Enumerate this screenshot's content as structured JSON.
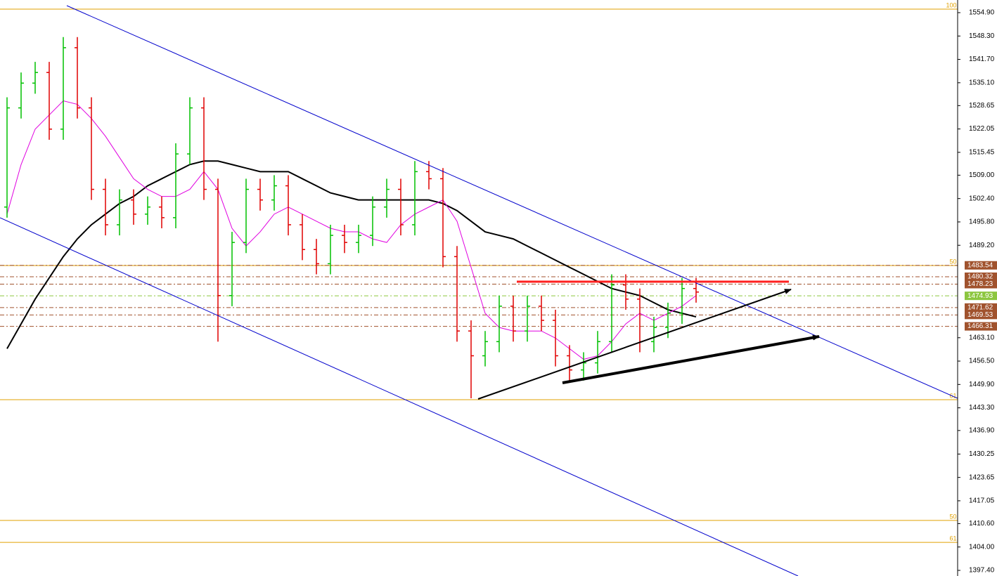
{
  "chart_data": {
    "type": "ohlc",
    "up_color": "#00c000",
    "down_color": "#e00000",
    "open": [
      1500,
      1528,
      1535,
      1538,
      1522,
      1545,
      1528,
      1505,
      1495,
      1502,
      1498,
      1500,
      1497,
      1515,
      1528,
      1505,
      1475,
      1490,
      1505,
      1502,
      1506,
      1495,
      1488,
      1484,
      1492,
      1490,
      1492,
      1500,
      1505,
      1495,
      1510,
      1508,
      1486,
      1465,
      1458,
      1462,
      1472,
      1465,
      1472,
      1468,
      1458,
      1454,
      1456,
      1462,
      1478,
      1474,
      1462,
      1466,
      1470,
      1477
    ],
    "high": [
      1531,
      1538,
      1541,
      1541,
      1548,
      1548,
      1531,
      1508,
      1505,
      1505,
      1503,
      1503,
      1518,
      1531,
      1531,
      1508,
      1493,
      1508,
      1508,
      1509,
      1509,
      1498,
      1491,
      1495,
      1495,
      1495,
      1503,
      1508,
      1508,
      1513,
      1513,
      1511,
      1489,
      1468,
      1465,
      1475,
      1475,
      1475,
      1475,
      1471,
      1461,
      1459,
      1465,
      1481,
      1481,
      1477,
      1469,
      1473,
      1480,
      1480
    ],
    "low": [
      1497,
      1525,
      1532,
      1519,
      1519,
      1525,
      1502,
      1492,
      1492,
      1495,
      1495,
      1494,
      1494,
      1512,
      1502,
      1462,
      1472,
      1487,
      1499,
      1499,
      1492,
      1485,
      1481,
      1481,
      1487,
      1487,
      1489,
      1497,
      1492,
      1492,
      1505,
      1483,
      1462,
      1446,
      1455,
      1459,
      1462,
      1462,
      1465,
      1455,
      1451,
      1451,
      1453,
      1459,
      1471,
      1459,
      1459,
      1463,
      1467,
      1473
    ],
    "close": [
      1528,
      1535,
      1538,
      1522,
      1545,
      1528,
      1505,
      1495,
      1502,
      1498,
      1500,
      1497,
      1515,
      1528,
      1505,
      1475,
      1490,
      1505,
      1502,
      1506,
      1495,
      1488,
      1484,
      1492,
      1490,
      1492,
      1500,
      1505,
      1495,
      1510,
      1508,
      1486,
      1465,
      1458,
      1462,
      1472,
      1465,
      1472,
      1468,
      1458,
      1454,
      1456,
      1462,
      1478,
      1474,
      1462,
      1466,
      1470,
      1477,
      1476
    ],
    "overlays": [
      {
        "color": "#000000",
        "values": [
          1460,
          1467,
          1474,
          1480,
          1486,
          1491,
          1495,
          1498,
          1501,
          1503,
          1506,
          1508,
          1510,
          1512,
          1513,
          1513,
          1512,
          1511,
          1510,
          1510,
          1510,
          1508,
          1506,
          1504,
          1503,
          1502,
          1502,
          1502,
          1502,
          1502,
          1502,
          1501,
          1499,
          1496,
          1493,
          1492,
          1491,
          1489,
          1487,
          1485,
          1483,
          1481,
          1479,
          1477,
          1476,
          1475,
          1473,
          1471,
          1470,
          1469
        ]
      },
      {
        "color": "#e000e0",
        "values": [
          1498,
          1512,
          1522,
          1526,
          1530,
          1529,
          1525,
          1520,
          1514,
          1508,
          1505,
          1503,
          1503,
          1505,
          1510,
          1505,
          1494,
          1489,
          1493,
          1498,
          1500,
          1498,
          1496,
          1494,
          1493,
          1493,
          1491,
          1490,
          1495,
          1498,
          1500,
          1502,
          1496,
          1483,
          1470,
          1466,
          1465,
          1465,
          1465,
          1463,
          1460,
          1457,
          1458,
          1462,
          1467,
          1470,
          1468,
          1470,
          1472,
          1475
        ]
      }
    ],
    "levels": [
      {
        "value": 1555.9,
        "label": "100.0",
        "color": "#e0a000"
      },
      {
        "value": 1483.5,
        "label": "50.0",
        "color": "#e0a000"
      },
      {
        "value": 1445.6,
        "label": "61.8",
        "color": "#e0a000"
      },
      {
        "value": 1411.5,
        "label": "50.0",
        "color": "#e0a000"
      },
      {
        "value": 1405.3,
        "label": "61.8",
        "color": "#e0a000"
      }
    ],
    "price_labels": [
      {
        "value": 1483.54,
        "color": "#a0522d"
      },
      {
        "value": 1480.32,
        "color": "#a0522d"
      },
      {
        "value": 1478.23,
        "color": "#a0522d"
      },
      {
        "value": 1474.93,
        "color": "#8cc63f"
      },
      {
        "value": 1471.62,
        "color": "#a0522d"
      },
      {
        "value": 1469.53,
        "color": "#a0522d"
      },
      {
        "value": 1466.31,
        "color": "#a0522d"
      }
    ],
    "ylim": [
      1395.81,
      1558.47
    ],
    "yticks": [
      {
        "value": 1554.9,
        "label": "1554.90"
      },
      {
        "value": 1548.3,
        "label": "1548.30"
      },
      {
        "value": 1541.7,
        "label": "1541.70"
      },
      {
        "value": 1535.1,
        "label": "1535.10"
      },
      {
        "value": 1528.65,
        "label": "1528.65"
      },
      {
        "value": 1522.05,
        "label": "1522.05"
      },
      {
        "value": 1515.45,
        "label": "1515.45"
      },
      {
        "value": 1509,
        "label": "1509.00"
      },
      {
        "value": 1502.4,
        "label": "1502.40"
      },
      {
        "value": 1495.8,
        "label": "1495.80"
      },
      {
        "value": 1489.2,
        "label": "1489.20"
      },
      {
        "value": 1463.1,
        "label": "1463.10"
      },
      {
        "value": 1456.5,
        "label": "1456.50"
      },
      {
        "value": 1449.9,
        "label": "1449.90"
      },
      {
        "value": 1443.3,
        "label": "1443.30"
      },
      {
        "value": 1436.9,
        "label": "1436.90"
      },
      {
        "value": 1430.25,
        "label": "1430.25"
      },
      {
        "value": 1423.65,
        "label": "1423.65"
      },
      {
        "value": 1417.05,
        "label": "1417.05"
      },
      {
        "value": 1410.6,
        "label": "1410.60"
      },
      {
        "value": 1404,
        "label": "1404.00"
      },
      {
        "value": 1397.4,
        "label": "1397.40"
      }
    ]
  }
}
